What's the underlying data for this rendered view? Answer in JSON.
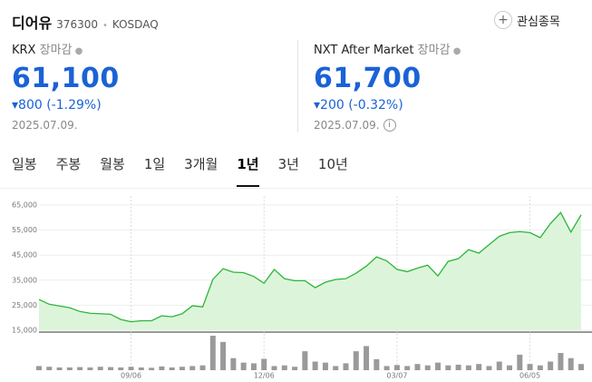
{
  "header": {
    "name": "디어유",
    "code": "376300",
    "market": "KOSDAQ",
    "watchlist": "관심종목"
  },
  "quotes": [
    {
      "market": "KRX",
      "status": "장마감",
      "price": "61,100",
      "change": "800",
      "change_pct": "(-1.29%)",
      "date": "2025.07.09."
    },
    {
      "market": "NXT After Market",
      "status": "장마감",
      "price": "61,700",
      "change": "200",
      "change_pct": "(-0.32%)",
      "date": "2025.07.09."
    }
  ],
  "tabs": [
    "일봉",
    "주봉",
    "월봉",
    "1일",
    "3개월",
    "1년",
    "3년",
    "10년"
  ],
  "active_tab": 5,
  "chart_data": {
    "type": "line",
    "categories": [
      null,
      null,
      null,
      null,
      null,
      null,
      null,
      null,
      null,
      "09/06",
      null,
      null,
      null,
      null,
      null,
      null,
      null,
      null,
      null,
      null,
      null,
      null,
      "12/06",
      null,
      null,
      null,
      null,
      null,
      null,
      null,
      null,
      null,
      null,
      null,
      null,
      "03/07",
      null,
      null,
      null,
      null,
      null,
      null,
      null,
      null,
      null,
      null,
      null,
      null,
      "06/05",
      null,
      null,
      null,
      null,
      null
    ],
    "series": [
      {
        "color": "#2cb53a",
        "fill": "#dcf5da",
        "values": [
          27300,
          25400,
          24700,
          24000,
          22500,
          21800,
          21600,
          21400,
          19300,
          18400,
          18800,
          18800,
          20800,
          20400,
          21600,
          24800,
          24300,
          35300,
          39600,
          38200,
          38000,
          36500,
          33800,
          39300,
          35600,
          34800,
          34800,
          32000,
          34200,
          35300,
          35600,
          37800,
          40600,
          44300,
          42700,
          39300,
          38400,
          39800,
          41000,
          36700,
          42500,
          43600,
          47200,
          45800,
          49200,
          52500,
          54000,
          54400,
          54000,
          52000,
          57600,
          62000,
          54200,
          61100
        ]
      },
      {
        "type": "bar",
        "axis": "y2",
        "color": "#9a9a9a",
        "values": [
          12,
          10,
          8,
          8,
          9,
          8,
          10,
          9,
          8,
          10,
          8,
          7,
          11,
          8,
          10,
          12,
          14,
          100,
          82,
          35,
          22,
          20,
          33,
          12,
          14,
          10,
          55,
          25,
          22,
          12,
          20,
          55,
          70,
          32,
          12,
          15,
          12,
          18,
          14,
          22,
          14,
          16,
          14,
          18,
          12,
          25,
          14,
          45,
          18,
          14,
          25,
          50,
          35,
          18
        ]
      }
    ],
    "ylim": [
      15000,
      65000
    ],
    "yticks": [
      {
        "value": 65000,
        "label": "65,000"
      },
      {
        "value": 55000,
        "label": "55,000"
      },
      {
        "value": 45000,
        "label": "45,000"
      },
      {
        "value": 35000,
        "label": "35,000"
      },
      {
        "value": 25000,
        "label": "25,000"
      },
      {
        "value": 15000,
        "label": "15,000"
      }
    ],
    "y2lim": [
      0,
      100
    ],
    "grid": true
  }
}
